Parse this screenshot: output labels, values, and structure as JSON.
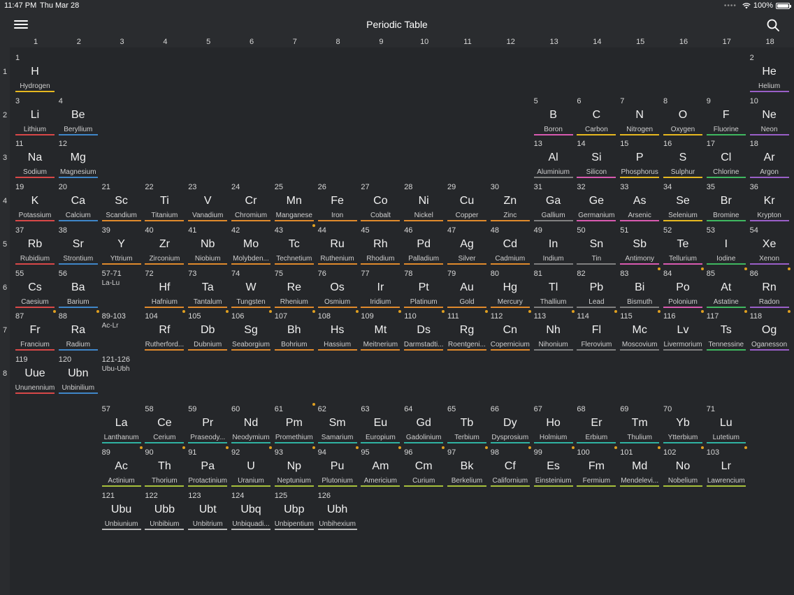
{
  "status": {
    "time": "11:47 PM",
    "date": "Thu Mar 28",
    "battery": "100%",
    "battery_level": 1.0
  },
  "nav": {
    "title": "Periodic Table",
    "menu_icon": "hamburger-menu-icon",
    "search_icon": "search-icon"
  },
  "colors": {
    "nonmetal": "#e6b820",
    "noble": "#9a5fc8",
    "alkali": "#d84848",
    "alkaline": "#3f86c8",
    "transition": "#e08a2c",
    "post": "#808080",
    "metalloid": "#d85ab0",
    "halogen": "#3fb860",
    "lanthanide": "#2fb2a2",
    "actinide": "#a6c03c",
    "unknown": "#bcbcbc",
    "dot": "#e0a020"
  },
  "columns": [
    "1",
    "2",
    "3",
    "4",
    "5",
    "6",
    "7",
    "8",
    "9",
    "10",
    "11",
    "12",
    "13",
    "14",
    "15",
    "16",
    "17",
    "18"
  ],
  "rows": [
    "1",
    "2",
    "3",
    "4",
    "5",
    "6",
    "7",
    "8"
  ],
  "ranges": [
    {
      "num": "57-71",
      "sub": "La-Lu",
      "col": 3,
      "row": 6
    },
    {
      "num": "89-103",
      "sub": "Ac-Lr",
      "col": 3,
      "row": 7
    },
    {
      "num": "121-126",
      "sub": "Ubu-Ubh",
      "col": 3,
      "row": 8
    }
  ],
  "elements": [
    {
      "n": "1",
      "s": "H",
      "name": "Hydrogen",
      "c": 1,
      "r": 1,
      "t": "nonmetal"
    },
    {
      "n": "2",
      "s": "He",
      "name": "Helium",
      "c": 18,
      "r": 1,
      "t": "noble"
    },
    {
      "n": "3",
      "s": "Li",
      "name": "Lithium",
      "c": 1,
      "r": 2,
      "t": "alkali"
    },
    {
      "n": "4",
      "s": "Be",
      "name": "Beryllium",
      "c": 2,
      "r": 2,
      "t": "alkaline"
    },
    {
      "n": "5",
      "s": "B",
      "name": "Boron",
      "c": 13,
      "r": 2,
      "t": "metalloid"
    },
    {
      "n": "6",
      "s": "C",
      "name": "Carbon",
      "c": 14,
      "r": 2,
      "t": "nonmetal"
    },
    {
      "n": "7",
      "s": "N",
      "name": "Nitrogen",
      "c": 15,
      "r": 2,
      "t": "nonmetal"
    },
    {
      "n": "8",
      "s": "O",
      "name": "Oxygen",
      "c": 16,
      "r": 2,
      "t": "nonmetal"
    },
    {
      "n": "9",
      "s": "F",
      "name": "Fluorine",
      "c": 17,
      "r": 2,
      "t": "halogen"
    },
    {
      "n": "10",
      "s": "Ne",
      "name": "Neon",
      "c": 18,
      "r": 2,
      "t": "noble"
    },
    {
      "n": "11",
      "s": "Na",
      "name": "Sodium",
      "c": 1,
      "r": 3,
      "t": "alkali"
    },
    {
      "n": "12",
      "s": "Mg",
      "name": "Magnesium",
      "c": 2,
      "r": 3,
      "t": "alkaline"
    },
    {
      "n": "13",
      "s": "Al",
      "name": "Aluminium",
      "c": 13,
      "r": 3,
      "t": "post"
    },
    {
      "n": "14",
      "s": "Si",
      "name": "Silicon",
      "c": 14,
      "r": 3,
      "t": "metalloid"
    },
    {
      "n": "15",
      "s": "P",
      "name": "Phosphorus",
      "c": 15,
      "r": 3,
      "t": "nonmetal"
    },
    {
      "n": "16",
      "s": "S",
      "name": "Sulphur",
      "c": 16,
      "r": 3,
      "t": "nonmetal"
    },
    {
      "n": "17",
      "s": "Cl",
      "name": "Chlorine",
      "c": 17,
      "r": 3,
      "t": "halogen"
    },
    {
      "n": "18",
      "s": "Ar",
      "name": "Argon",
      "c": 18,
      "r": 3,
      "t": "noble"
    },
    {
      "n": "19",
      "s": "K",
      "name": "Potassium",
      "c": 1,
      "r": 4,
      "t": "alkali"
    },
    {
      "n": "20",
      "s": "Ca",
      "name": "Calcium",
      "c": 2,
      "r": 4,
      "t": "alkaline"
    },
    {
      "n": "21",
      "s": "Sc",
      "name": "Scandium",
      "c": 3,
      "r": 4,
      "t": "transition"
    },
    {
      "n": "22",
      "s": "Ti",
      "name": "Titanium",
      "c": 4,
      "r": 4,
      "t": "transition"
    },
    {
      "n": "23",
      "s": "V",
      "name": "Vanadium",
      "c": 5,
      "r": 4,
      "t": "transition"
    },
    {
      "n": "24",
      "s": "Cr",
      "name": "Chromium",
      "c": 6,
      "r": 4,
      "t": "transition"
    },
    {
      "n": "25",
      "s": "Mn",
      "name": "Manganese",
      "c": 7,
      "r": 4,
      "t": "transition"
    },
    {
      "n": "26",
      "s": "Fe",
      "name": "Iron",
      "c": 8,
      "r": 4,
      "t": "transition"
    },
    {
      "n": "27",
      "s": "Co",
      "name": "Cobalt",
      "c": 9,
      "r": 4,
      "t": "transition"
    },
    {
      "n": "28",
      "s": "Ni",
      "name": "Nickel",
      "c": 10,
      "r": 4,
      "t": "transition"
    },
    {
      "n": "29",
      "s": "Cu",
      "name": "Copper",
      "c": 11,
      "r": 4,
      "t": "transition"
    },
    {
      "n": "30",
      "s": "Zn",
      "name": "Zinc",
      "c": 12,
      "r": 4,
      "t": "transition"
    },
    {
      "n": "31",
      "s": "Ga",
      "name": "Gallium",
      "c": 13,
      "r": 4,
      "t": "post"
    },
    {
      "n": "32",
      "s": "Ge",
      "name": "Germanium",
      "c": 14,
      "r": 4,
      "t": "metalloid"
    },
    {
      "n": "33",
      "s": "As",
      "name": "Arsenic",
      "c": 15,
      "r": 4,
      "t": "metalloid"
    },
    {
      "n": "34",
      "s": "Se",
      "name": "Selenium",
      "c": 16,
      "r": 4,
      "t": "nonmetal"
    },
    {
      "n": "35",
      "s": "Br",
      "name": "Bromine",
      "c": 17,
      "r": 4,
      "t": "halogen"
    },
    {
      "n": "36",
      "s": "Kr",
      "name": "Krypton",
      "c": 18,
      "r": 4,
      "t": "noble"
    },
    {
      "n": "37",
      "s": "Rb",
      "name": "Rubidium",
      "c": 1,
      "r": 5,
      "t": "alkali"
    },
    {
      "n": "38",
      "s": "Sr",
      "name": "Strontium",
      "c": 2,
      "r": 5,
      "t": "alkaline"
    },
    {
      "n": "39",
      "s": "Y",
      "name": "Yttrium",
      "c": 3,
      "r": 5,
      "t": "transition"
    },
    {
      "n": "40",
      "s": "Zr",
      "name": "Zirconium",
      "c": 4,
      "r": 5,
      "t": "transition"
    },
    {
      "n": "41",
      "s": "Nb",
      "name": "Niobium",
      "c": 5,
      "r": 5,
      "t": "transition"
    },
    {
      "n": "42",
      "s": "Mo",
      "name": "Molybden...",
      "c": 6,
      "r": 5,
      "t": "transition"
    },
    {
      "n": "43",
      "s": "Tc",
      "name": "Technetium",
      "c": 7,
      "r": 5,
      "t": "transition",
      "d": true
    },
    {
      "n": "44",
      "s": "Ru",
      "name": "Ruthenium",
      "c": 8,
      "r": 5,
      "t": "transition"
    },
    {
      "n": "45",
      "s": "Rh",
      "name": "Rhodium",
      "c": 9,
      "r": 5,
      "t": "transition"
    },
    {
      "n": "46",
      "s": "Pd",
      "name": "Palladium",
      "c": 10,
      "r": 5,
      "t": "transition"
    },
    {
      "n": "47",
      "s": "Ag",
      "name": "Silver",
      "c": 11,
      "r": 5,
      "t": "transition"
    },
    {
      "n": "48",
      "s": "Cd",
      "name": "Cadmium",
      "c": 12,
      "r": 5,
      "t": "transition"
    },
    {
      "n": "49",
      "s": "In",
      "name": "Indium",
      "c": 13,
      "r": 5,
      "t": "post"
    },
    {
      "n": "50",
      "s": "Sn",
      "name": "Tin",
      "c": 14,
      "r": 5,
      "t": "post"
    },
    {
      "n": "51",
      "s": "Sb",
      "name": "Antimony",
      "c": 15,
      "r": 5,
      "t": "metalloid"
    },
    {
      "n": "52",
      "s": "Te",
      "name": "Tellurium",
      "c": 16,
      "r": 5,
      "t": "metalloid"
    },
    {
      "n": "53",
      "s": "I",
      "name": "Iodine",
      "c": 17,
      "r": 5,
      "t": "halogen"
    },
    {
      "n": "54",
      "s": "Xe",
      "name": "Xenon",
      "c": 18,
      "r": 5,
      "t": "noble"
    },
    {
      "n": "55",
      "s": "Cs",
      "name": "Caesium",
      "c": 1,
      "r": 6,
      "t": "alkali"
    },
    {
      "n": "56",
      "s": "Ba",
      "name": "Barium",
      "c": 2,
      "r": 6,
      "t": "alkaline"
    },
    {
      "n": "72",
      "s": "Hf",
      "name": "Hafnium",
      "c": 4,
      "r": 6,
      "t": "transition"
    },
    {
      "n": "73",
      "s": "Ta",
      "name": "Tantalum",
      "c": 5,
      "r": 6,
      "t": "transition"
    },
    {
      "n": "74",
      "s": "W",
      "name": "Tungsten",
      "c": 6,
      "r": 6,
      "t": "transition"
    },
    {
      "n": "75",
      "s": "Re",
      "name": "Rhenium",
      "c": 7,
      "r": 6,
      "t": "transition"
    },
    {
      "n": "76",
      "s": "Os",
      "name": "Osmium",
      "c": 8,
      "r": 6,
      "t": "transition"
    },
    {
      "n": "77",
      "s": "Ir",
      "name": "Iridium",
      "c": 9,
      "r": 6,
      "t": "transition"
    },
    {
      "n": "78",
      "s": "Pt",
      "name": "Platinum",
      "c": 10,
      "r": 6,
      "t": "transition"
    },
    {
      "n": "79",
      "s": "Au",
      "name": "Gold",
      "c": 11,
      "r": 6,
      "t": "transition"
    },
    {
      "n": "80",
      "s": "Hg",
      "name": "Mercury",
      "c": 12,
      "r": 6,
      "t": "transition"
    },
    {
      "n": "81",
      "s": "Tl",
      "name": "Thallium",
      "c": 13,
      "r": 6,
      "t": "post"
    },
    {
      "n": "82",
      "s": "Pb",
      "name": "Lead",
      "c": 14,
      "r": 6,
      "t": "post"
    },
    {
      "n": "83",
      "s": "Bi",
      "name": "Bismuth",
      "c": 15,
      "r": 6,
      "t": "post",
      "d": true
    },
    {
      "n": "84",
      "s": "Po",
      "name": "Polonium",
      "c": 16,
      "r": 6,
      "t": "metalloid",
      "d": true
    },
    {
      "n": "85",
      "s": "At",
      "name": "Astatine",
      "c": 17,
      "r": 6,
      "t": "halogen",
      "d": true
    },
    {
      "n": "86",
      "s": "Rn",
      "name": "Radon",
      "c": 18,
      "r": 6,
      "t": "noble",
      "d": true
    },
    {
      "n": "87",
      "s": "Fr",
      "name": "Francium",
      "c": 1,
      "r": 7,
      "t": "alkali",
      "d": true
    },
    {
      "n": "88",
      "s": "Ra",
      "name": "Radium",
      "c": 2,
      "r": 7,
      "t": "alkaline",
      "d": true
    },
    {
      "n": "104",
      "s": "Rf",
      "name": "Rutherford...",
      "c": 4,
      "r": 7,
      "t": "transition",
      "d": true
    },
    {
      "n": "105",
      "s": "Db",
      "name": "Dubnium",
      "c": 5,
      "r": 7,
      "t": "transition",
      "d": true
    },
    {
      "n": "106",
      "s": "Sg",
      "name": "Seaborgium",
      "c": 6,
      "r": 7,
      "t": "transition",
      "d": true
    },
    {
      "n": "107",
      "s": "Bh",
      "name": "Bohrium",
      "c": 7,
      "r": 7,
      "t": "transition",
      "d": true
    },
    {
      "n": "108",
      "s": "Hs",
      "name": "Hassium",
      "c": 8,
      "r": 7,
      "t": "transition",
      "d": true
    },
    {
      "n": "109",
      "s": "Mt",
      "name": "Meitnerium",
      "c": 9,
      "r": 7,
      "t": "transition",
      "d": true
    },
    {
      "n": "110",
      "s": "Ds",
      "name": "Darmstadti...",
      "c": 10,
      "r": 7,
      "t": "transition",
      "d": true
    },
    {
      "n": "111",
      "s": "Rg",
      "name": "Roentgeni...",
      "c": 11,
      "r": 7,
      "t": "transition",
      "d": true
    },
    {
      "n": "112",
      "s": "Cn",
      "name": "Copernicium",
      "c": 12,
      "r": 7,
      "t": "transition",
      "d": true
    },
    {
      "n": "113",
      "s": "Nh",
      "name": "Nihonium",
      "c": 13,
      "r": 7,
      "t": "post",
      "d": true
    },
    {
      "n": "114",
      "s": "Fl",
      "name": "Flerovium",
      "c": 14,
      "r": 7,
      "t": "post",
      "d": true
    },
    {
      "n": "115",
      "s": "Mc",
      "name": "Moscovium",
      "c": 15,
      "r": 7,
      "t": "post",
      "d": true
    },
    {
      "n": "116",
      "s": "Lv",
      "name": "Livermorium",
      "c": 16,
      "r": 7,
      "t": "post",
      "d": true
    },
    {
      "n": "117",
      "s": "Ts",
      "name": "Tennessine",
      "c": 17,
      "r": 7,
      "t": "halogen",
      "d": true
    },
    {
      "n": "118",
      "s": "Og",
      "name": "Oganesson",
      "c": 18,
      "r": 7,
      "t": "noble",
      "d": true
    },
    {
      "n": "119",
      "s": "Uue",
      "name": "Ununennium",
      "c": 1,
      "r": 8,
      "t": "alkali"
    },
    {
      "n": "120",
      "s": "Ubn",
      "name": "Unbinilium",
      "c": 2,
      "r": 8,
      "t": "alkaline"
    },
    {
      "n": "57",
      "s": "La",
      "name": "Lanthanum",
      "c": 3,
      "r": 9,
      "t": "lanthanide"
    },
    {
      "n": "58",
      "s": "Ce",
      "name": "Cerium",
      "c": 4,
      "r": 9,
      "t": "lanthanide"
    },
    {
      "n": "59",
      "s": "Pr",
      "name": "Praseody...",
      "c": 5,
      "r": 9,
      "t": "lanthanide"
    },
    {
      "n": "60",
      "s": "Nd",
      "name": "Neodymium",
      "c": 6,
      "r": 9,
      "t": "lanthanide"
    },
    {
      "n": "61",
      "s": "Pm",
      "name": "Promethium",
      "c": 7,
      "r": 9,
      "t": "lanthanide",
      "d": true
    },
    {
      "n": "62",
      "s": "Sm",
      "name": "Samarium",
      "c": 8,
      "r": 9,
      "t": "lanthanide"
    },
    {
      "n": "63",
      "s": "Eu",
      "name": "Europium",
      "c": 9,
      "r": 9,
      "t": "lanthanide"
    },
    {
      "n": "64",
      "s": "Gd",
      "name": "Gadolinium",
      "c": 10,
      "r": 9,
      "t": "lanthanide"
    },
    {
      "n": "65",
      "s": "Tb",
      "name": "Terbium",
      "c": 11,
      "r": 9,
      "t": "lanthanide"
    },
    {
      "n": "66",
      "s": "Dy",
      "name": "Dysprosium",
      "c": 12,
      "r": 9,
      "t": "lanthanide"
    },
    {
      "n": "67",
      "s": "Ho",
      "name": "Holmium",
      "c": 13,
      "r": 9,
      "t": "lanthanide"
    },
    {
      "n": "68",
      "s": "Er",
      "name": "Erbium",
      "c": 14,
      "r": 9,
      "t": "lanthanide"
    },
    {
      "n": "69",
      "s": "Tm",
      "name": "Thulium",
      "c": 15,
      "r": 9,
      "t": "lanthanide"
    },
    {
      "n": "70",
      "s": "Yb",
      "name": "Ytterbium",
      "c": 16,
      "r": 9,
      "t": "lanthanide"
    },
    {
      "n": "71",
      "s": "Lu",
      "name": "Lutetium",
      "c": 17,
      "r": 9,
      "t": "lanthanide"
    },
    {
      "n": "89",
      "s": "Ac",
      "name": "Actinium",
      "c": 3,
      "r": 10,
      "t": "actinide",
      "d": true
    },
    {
      "n": "90",
      "s": "Th",
      "name": "Thorium",
      "c": 4,
      "r": 10,
      "t": "actinide",
      "d": true
    },
    {
      "n": "91",
      "s": "Pa",
      "name": "Protactinium",
      "c": 5,
      "r": 10,
      "t": "actinide",
      "d": true
    },
    {
      "n": "92",
      "s": "U",
      "name": "Uranium",
      "c": 6,
      "r": 10,
      "t": "actinide",
      "d": true
    },
    {
      "n": "93",
      "s": "Np",
      "name": "Neptunium",
      "c": 7,
      "r": 10,
      "t": "actinide",
      "d": true
    },
    {
      "n": "94",
      "s": "Pu",
      "name": "Plutonium",
      "c": 8,
      "r": 10,
      "t": "actinide",
      "d": true
    },
    {
      "n": "95",
      "s": "Am",
      "name": "Americium",
      "c": 9,
      "r": 10,
      "t": "actinide",
      "d": true
    },
    {
      "n": "96",
      "s": "Cm",
      "name": "Curium",
      "c": 10,
      "r": 10,
      "t": "actinide",
      "d": true
    },
    {
      "n": "97",
      "s": "Bk",
      "name": "Berkelium",
      "c": 11,
      "r": 10,
      "t": "actinide",
      "d": true
    },
    {
      "n": "98",
      "s": "Cf",
      "name": "Californium",
      "c": 12,
      "r": 10,
      "t": "actinide",
      "d": true
    },
    {
      "n": "99",
      "s": "Es",
      "name": "Einsteinium",
      "c": 13,
      "r": 10,
      "t": "actinide",
      "d": true
    },
    {
      "n": "100",
      "s": "Fm",
      "name": "Fermium",
      "c": 14,
      "r": 10,
      "t": "actinide",
      "d": true
    },
    {
      "n": "101",
      "s": "Md",
      "name": "Mendelevi...",
      "c": 15,
      "r": 10,
      "t": "actinide",
      "d": true
    },
    {
      "n": "102",
      "s": "No",
      "name": "Nobelium",
      "c": 16,
      "r": 10,
      "t": "actinide",
      "d": true
    },
    {
      "n": "103",
      "s": "Lr",
      "name": "Lawrencium",
      "c": 17,
      "r": 10,
      "t": "actinide",
      "d": true
    },
    {
      "n": "121",
      "s": "Ubu",
      "name": "Unbiunium",
      "c": 3,
      "r": 11,
      "t": "unknown"
    },
    {
      "n": "122",
      "s": "Ubb",
      "name": "Unbibium",
      "c": 4,
      "r": 11,
      "t": "unknown"
    },
    {
      "n": "123",
      "s": "Ubt",
      "name": "Unbitrium",
      "c": 5,
      "r": 11,
      "t": "unknown"
    },
    {
      "n": "124",
      "s": "Ubq",
      "name": "Unbiquadi...",
      "c": 6,
      "r": 11,
      "t": "unknown"
    },
    {
      "n": "125",
      "s": "Ubp",
      "name": "Unbipentium",
      "c": 7,
      "r": 11,
      "t": "unknown"
    },
    {
      "n": "126",
      "s": "Ubh",
      "name": "Unbihexium",
      "c": 8,
      "r": 11,
      "t": "unknown"
    }
  ]
}
